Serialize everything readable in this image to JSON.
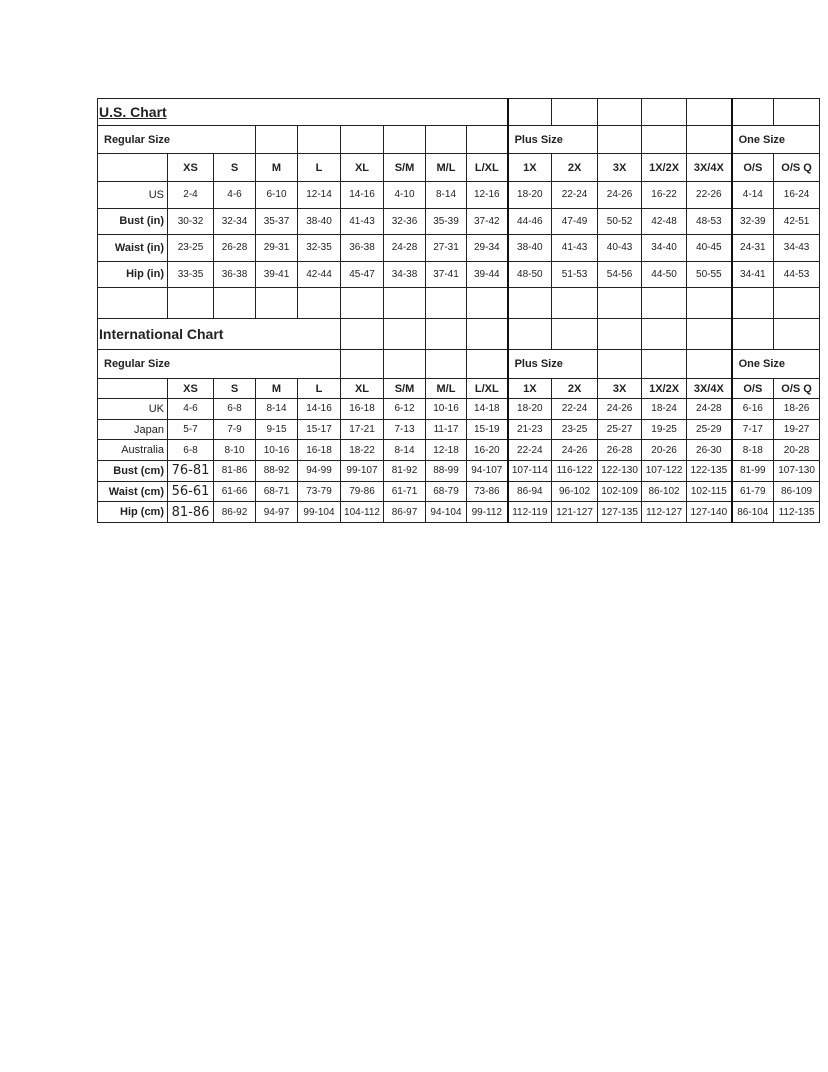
{
  "us_chart": {
    "title": "U.S. Chart",
    "groups": {
      "regular": "Regular Size",
      "plus": "Plus Size",
      "one": "One Size"
    },
    "sizes": [
      "XS",
      "S",
      "M",
      "L",
      "XL",
      "S/M",
      "M/L",
      "L/XL",
      "1X",
      "2X",
      "3X",
      "1X/2X",
      "3X/4X",
      "O/S",
      "O/S Q"
    ],
    "rows": [
      {
        "label": "US",
        "values": [
          "2-4",
          "4-6",
          "6-10",
          "12-14",
          "14-16",
          "4-10",
          "8-14",
          "12-16",
          "18-20",
          "22-24",
          "24-26",
          "16-22",
          "22-26",
          "4-14",
          "16-24"
        ]
      },
      {
        "label": "Bust (in)",
        "values": [
          "30-32",
          "32-34",
          "35-37",
          "38-40",
          "41-43",
          "32-36",
          "35-39",
          "37-42",
          "44-46",
          "47-49",
          "50-52",
          "42-48",
          "48-53",
          "32-39",
          "42-51"
        ]
      },
      {
        "label": "Waist (in)",
        "values": [
          "23-25",
          "26-28",
          "29-31",
          "32-35",
          "36-38",
          "24-28",
          "27-31",
          "29-34",
          "38-40",
          "41-43",
          "40-43",
          "34-40",
          "40-45",
          "24-31",
          "34-43"
        ]
      },
      {
        "label": "Hip (in)",
        "values": [
          "33-35",
          "36-38",
          "39-41",
          "42-44",
          "45-47",
          "34-38",
          "37-41",
          "39-44",
          "48-50",
          "51-53",
          "54-56",
          "44-50",
          "50-55",
          "34-41",
          "44-53"
        ]
      }
    ]
  },
  "international_chart": {
    "title": "International Chart",
    "groups": {
      "regular": "Regular Size",
      "plus": "Plus Size",
      "one": "One Size"
    },
    "sizes": [
      "XS",
      "S",
      "M",
      "L",
      "XL",
      "S/M",
      "M/L",
      "L/XL",
      "1X",
      "2X",
      "3X",
      "1X/2X",
      "3X/4X",
      "O/S",
      "O/S Q"
    ],
    "rows": [
      {
        "label": "UK",
        "values": [
          "4-6",
          "6-8",
          "8-14",
          "14-16",
          "16-18",
          "6-12",
          "10-16",
          "14-18",
          "18-20",
          "22-24",
          "24-26",
          "18-24",
          "24-28",
          "6-16",
          "18-26"
        ]
      },
      {
        "label": "Japan",
        "values": [
          "5-7",
          "7-9",
          "9-15",
          "15-17",
          "17-21",
          "7-13",
          "11-17",
          "15-19",
          "21-23",
          "23-25",
          "25-27",
          "19-25",
          "25-29",
          "7-17",
          "19-27"
        ]
      },
      {
        "label": "Australia",
        "values": [
          "6-8",
          "8-10",
          "10-16",
          "16-18",
          "18-22",
          "8-14",
          "12-18",
          "16-20",
          "22-24",
          "24-26",
          "26-28",
          "20-26",
          "26-30",
          "8-18",
          "20-28"
        ]
      },
      {
        "label": "Bust (cm)",
        "values": [
          "76-81",
          "81-86",
          "88-92",
          "94-99",
          "99-107",
          "81-92",
          "88-99",
          "94-107",
          "107-114",
          "116-122",
          "122-130",
          "107-122",
          "122-135",
          "81-99",
          "107-130"
        ]
      },
      {
        "label": "Waist (cm)",
        "values": [
          "56-61",
          "61-66",
          "68-71",
          "73-79",
          "79-86",
          "61-71",
          "68-79",
          "73-86",
          "86-94",
          "96-102",
          "102-109",
          "86-102",
          "102-115",
          "61-79",
          "86-109"
        ]
      },
      {
        "label": "Hip (cm)",
        "values": [
          "81-86",
          "86-92",
          "94-97",
          "99-104",
          "104-112",
          "86-97",
          "94-104",
          "99-112",
          "112-119",
          "121-127",
          "127-135",
          "112-127",
          "127-140",
          "86-104",
          "112-135"
        ]
      }
    ]
  }
}
